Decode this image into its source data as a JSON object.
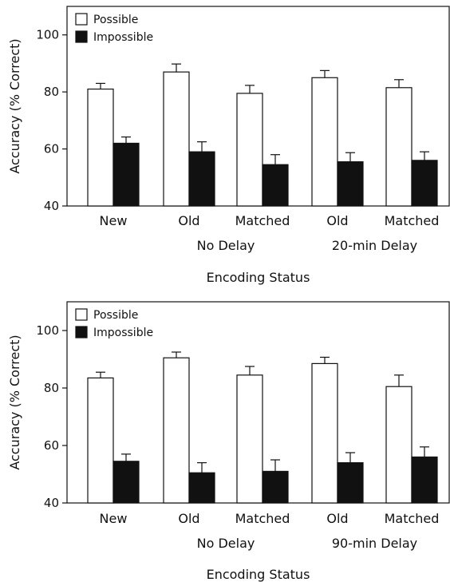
{
  "chart_data": [
    {
      "type": "bar",
      "title": "",
      "xlabel": "Encoding Status",
      "ylabel": "Accuracy (% Correct)",
      "ylim": [
        40,
        110
      ],
      "yticks": [
        40,
        60,
        80,
        100
      ],
      "categories": [
        "New",
        "Old",
        "Matched",
        "Old",
        "Matched"
      ],
      "group_labels": [
        {
          "label": "No Delay",
          "span": [
            1,
            2
          ]
        },
        {
          "label": "20-min Delay",
          "span": [
            3,
            4
          ]
        }
      ],
      "legend_position": "top-left",
      "series": [
        {
          "name": "Possible",
          "color": "#ffffff",
          "values": [
            81,
            87,
            79.5,
            85,
            81.5
          ],
          "errors": [
            2,
            2.8,
            2.8,
            2.5,
            2.8
          ]
        },
        {
          "name": "Impossible",
          "color": "#111111",
          "values": [
            62,
            59,
            54.5,
            55.5,
            56
          ],
          "errors": [
            2.2,
            3.5,
            3.5,
            3.2,
            3
          ]
        }
      ]
    },
    {
      "type": "bar",
      "title": "",
      "xlabel": "Encoding Status",
      "ylabel": "Accuracy (% Correct)",
      "ylim": [
        40,
        110
      ],
      "yticks": [
        40,
        60,
        80,
        100
      ],
      "categories": [
        "New",
        "Old",
        "Matched",
        "Old",
        "Matched"
      ],
      "group_labels": [
        {
          "label": "No Delay",
          "span": [
            1,
            2
          ]
        },
        {
          "label": "90-min Delay",
          "span": [
            3,
            4
          ]
        }
      ],
      "legend_position": "top-left",
      "series": [
        {
          "name": "Possible",
          "color": "#ffffff",
          "values": [
            83.5,
            90.5,
            84.5,
            88.5,
            80.5
          ],
          "errors": [
            2,
            2,
            3,
            2.2,
            4
          ]
        },
        {
          "name": "Impossible",
          "color": "#111111",
          "values": [
            54.5,
            50.5,
            51,
            54,
            56
          ],
          "errors": [
            2.5,
            3.5,
            4,
            3.5,
            3.5
          ]
        }
      ]
    }
  ]
}
